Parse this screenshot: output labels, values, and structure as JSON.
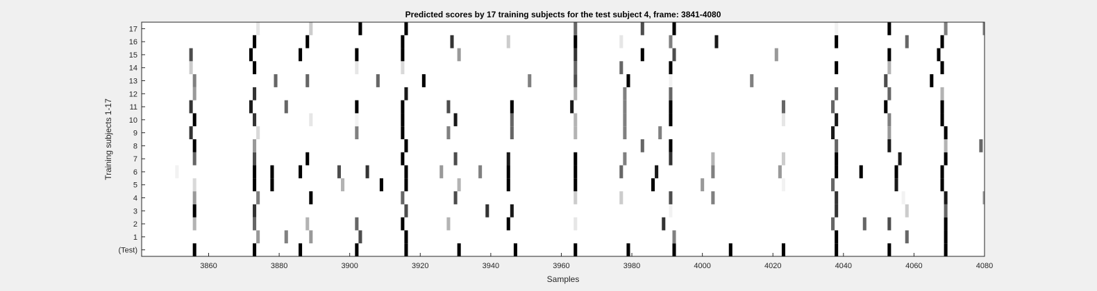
{
  "chart_data": {
    "type": "heatmap",
    "title": "Predicted scores by 17 training subjects for the test subject 4, frame: 3841-4080",
    "xlabel": "Samples",
    "ylabel": "Training subjects 1-17",
    "xlim": [
      3841,
      4080
    ],
    "x_ticks": [
      3860,
      3880,
      3900,
      3920,
      3940,
      3960,
      3980,
      4000,
      4020,
      4040,
      4060,
      4080
    ],
    "rows": [
      "(Test)",
      "1",
      "2",
      "3",
      "4",
      "5",
      "6",
      "7",
      "8",
      "9",
      "10",
      "11",
      "12",
      "13",
      "14",
      "15",
      "16",
      "17"
    ],
    "colormap": "gray (white = 0, black = 1)",
    "grid": false,
    "marks": [
      {
        "row": "(Test)",
        "points": [
          [
            3856,
            1
          ],
          [
            3873,
            1
          ],
          [
            3886,
            1
          ],
          [
            3902,
            1
          ],
          [
            3916,
            1
          ],
          [
            3931,
            1
          ],
          [
            3947,
            1
          ],
          [
            3964,
            1
          ],
          [
            3979,
            1
          ],
          [
            3992,
            1
          ],
          [
            4008,
            1
          ],
          [
            4023,
            1
          ],
          [
            4038,
            1
          ],
          [
            4053,
            1
          ],
          [
            4069,
            1
          ]
        ]
      },
      {
        "row": "1",
        "points": [
          [
            3874,
            0.4
          ],
          [
            3882,
            0.5
          ],
          [
            3889,
            0.4
          ],
          [
            3903,
            0.7
          ],
          [
            3916,
            1
          ],
          [
            3992,
            0.5
          ],
          [
            4038,
            1
          ],
          [
            4058,
            0.6
          ],
          [
            4069,
            1
          ]
        ]
      },
      {
        "row": "2",
        "points": [
          [
            3856,
            0.3
          ],
          [
            3873,
            0.6
          ],
          [
            3888,
            0.3
          ],
          [
            3902,
            0.6
          ],
          [
            3915,
            1
          ],
          [
            3928,
            0.3
          ],
          [
            3945,
            1
          ],
          [
            3964,
            0.1
          ],
          [
            3989,
            0.8
          ],
          [
            4037,
            0.6
          ],
          [
            4046,
            0.6
          ],
          [
            4053,
            0.7
          ],
          [
            4069,
            1
          ]
        ]
      },
      {
        "row": "3",
        "points": [
          [
            3856,
            1
          ],
          [
            3873,
            0.8
          ],
          [
            3916,
            0.7
          ],
          [
            3939,
            0.8
          ],
          [
            3946,
            0.9
          ],
          [
            3991,
            0.05
          ],
          [
            4038,
            0.8
          ],
          [
            4058,
            0.2
          ],
          [
            4069,
            0.6
          ]
        ]
      },
      {
        "row": "4",
        "points": [
          [
            3856,
            0.4
          ],
          [
            3874,
            0.5
          ],
          [
            3889,
            1
          ],
          [
            3915,
            0.6
          ],
          [
            3930,
            0.7
          ],
          [
            3964,
            0.2
          ],
          [
            3977,
            0.2
          ],
          [
            3991,
            0.7
          ],
          [
            4003,
            0.5
          ],
          [
            4038,
            0.8
          ],
          [
            4057,
            0.05
          ],
          [
            4069,
            0.9
          ],
          [
            4080,
            0.4
          ]
        ]
      },
      {
        "row": "5",
        "points": [
          [
            3856,
            0.15
          ],
          [
            3873,
            1
          ],
          [
            3878,
            1
          ],
          [
            3898,
            0.3
          ],
          [
            3909,
            1
          ],
          [
            3916,
            1
          ],
          [
            3931,
            0.3
          ],
          [
            3945,
            1
          ],
          [
            3964,
            1
          ],
          [
            3986,
            1
          ],
          [
            4000,
            0.4
          ],
          [
            4023,
            0.05
          ],
          [
            4037,
            0.6
          ],
          [
            4055,
            0.9
          ],
          [
            4068,
            1
          ]
        ]
      },
      {
        "row": "6",
        "points": [
          [
            3851,
            0.05
          ],
          [
            3873,
            1
          ],
          [
            3878,
            1
          ],
          [
            3886,
            1
          ],
          [
            3897,
            0.7
          ],
          [
            3905,
            0.8
          ],
          [
            3916,
            1
          ],
          [
            3926,
            0.4
          ],
          [
            3937,
            0.5
          ],
          [
            3945,
            1
          ],
          [
            3964,
            1
          ],
          [
            3977,
            0.6
          ],
          [
            3987,
            0.9
          ],
          [
            4003,
            0.5
          ],
          [
            4022,
            0.4
          ],
          [
            4038,
            1
          ],
          [
            4045,
            1
          ],
          [
            4055,
            1
          ],
          [
            4068,
            1
          ]
        ]
      },
      {
        "row": "7",
        "points": [
          [
            3856,
            0.6
          ],
          [
            3873,
            0.7
          ],
          [
            3888,
            1
          ],
          [
            3915,
            1
          ],
          [
            3930,
            0.7
          ],
          [
            3945,
            0.9
          ],
          [
            3964,
            1
          ],
          [
            3978,
            0.5
          ],
          [
            3991,
            0.8
          ],
          [
            4003,
            0.3
          ],
          [
            4023,
            0.2
          ],
          [
            4038,
            1
          ],
          [
            4056,
            0.9
          ],
          [
            4069,
            1
          ]
        ]
      },
      {
        "row": "8",
        "points": [
          [
            3856,
            1
          ],
          [
            3873,
            0.4
          ],
          [
            3916,
            1
          ],
          [
            3983,
            0.6
          ],
          [
            3991,
            1
          ],
          [
            4038,
            0.6
          ],
          [
            4053,
            0.9
          ],
          [
            4069,
            0.3
          ],
          [
            4079,
            0.6
          ]
        ]
      },
      {
        "row": "9",
        "points": [
          [
            3855,
            0.8
          ],
          [
            3874,
            0.15
          ],
          [
            3902,
            0.5
          ],
          [
            3915,
            1
          ],
          [
            3928,
            0.5
          ],
          [
            3946,
            0.6
          ],
          [
            3964,
            0.3
          ],
          [
            3978,
            0.5
          ],
          [
            3988,
            0.5
          ],
          [
            4037,
            0.9
          ],
          [
            4053,
            0.4
          ],
          [
            4069,
            1
          ]
        ]
      },
      {
        "row": "10",
        "points": [
          [
            3856,
            1
          ],
          [
            3873,
            0.8
          ],
          [
            3889,
            0.1
          ],
          [
            3902,
            0.05
          ],
          [
            3915,
            1
          ],
          [
            3930,
            0.9
          ],
          [
            3946,
            0.6
          ],
          [
            3964,
            0.3
          ],
          [
            3978,
            0.5
          ],
          [
            3991,
            1
          ],
          [
            4023,
            0.1
          ],
          [
            4038,
            0.9
          ],
          [
            4053,
            0.5
          ],
          [
            4068,
            1
          ]
        ]
      },
      {
        "row": "11",
        "points": [
          [
            3855,
            0.8
          ],
          [
            3872,
            0.9
          ],
          [
            3882,
            0.6
          ],
          [
            3902,
            1
          ],
          [
            3915,
            1
          ],
          [
            3928,
            0.7
          ],
          [
            3946,
            1
          ],
          [
            3963,
            0.9
          ],
          [
            3978,
            0.5
          ],
          [
            3991,
            1
          ],
          [
            4023,
            0.6
          ],
          [
            4037,
            0.6
          ],
          [
            4052,
            1
          ],
          [
            4068,
            1
          ]
        ]
      },
      {
        "row": "12",
        "points": [
          [
            3856,
            0.4
          ],
          [
            3873,
            0.8
          ],
          [
            3916,
            0.9
          ],
          [
            3964,
            0.3
          ],
          [
            3978,
            0.5
          ],
          [
            3991,
            0.6
          ],
          [
            4038,
            0.6
          ],
          [
            4053,
            0.6
          ],
          [
            4068,
            0.3
          ]
        ]
      },
      {
        "row": "13",
        "points": [
          [
            3856,
            0.5
          ],
          [
            3879,
            0.6
          ],
          [
            3888,
            0.6
          ],
          [
            3908,
            0.6
          ],
          [
            3921,
            1
          ],
          [
            3951,
            0.5
          ],
          [
            3964,
            0.7
          ],
          [
            3979,
            1
          ],
          [
            3991,
            0.05
          ],
          [
            4014,
            0.5
          ],
          [
            4052,
            0.7
          ],
          [
            4065,
            1
          ]
        ]
      },
      {
        "row": "14",
        "points": [
          [
            3855,
            0.2
          ],
          [
            3873,
            1
          ],
          [
            3902,
            0.1
          ],
          [
            3915,
            0.15
          ],
          [
            3964,
            0.6
          ],
          [
            3977,
            0.6
          ],
          [
            3991,
            1
          ],
          [
            4038,
            1
          ],
          [
            4053,
            0.3
          ],
          [
            4068,
            1
          ]
        ]
      },
      {
        "row": "15",
        "points": [
          [
            3855,
            0.7
          ],
          [
            3872,
            1
          ],
          [
            3886,
            1
          ],
          [
            3902,
            1
          ],
          [
            3915,
            1
          ],
          [
            3931,
            0.4
          ],
          [
            3964,
            0.8
          ],
          [
            3983,
            1
          ],
          [
            3992,
            0.7
          ],
          [
            4021,
            0.4
          ],
          [
            4053,
            1
          ],
          [
            4067,
            1
          ]
        ]
      },
      {
        "row": "16",
        "points": [
          [
            3873,
            1
          ],
          [
            3888,
            1
          ],
          [
            3915,
            1
          ],
          [
            3929,
            0.8
          ],
          [
            3945,
            0.2
          ],
          [
            3964,
            1
          ],
          [
            3977,
            0.1
          ],
          [
            3991,
            0.5
          ],
          [
            4004,
            0.9
          ],
          [
            4038,
            1
          ],
          [
            4058,
            0.6
          ],
          [
            4068,
            1
          ]
        ]
      },
      {
        "row": "17",
        "points": [
          [
            3874,
            0.1
          ],
          [
            3889,
            0.2
          ],
          [
            3903,
            1
          ],
          [
            3916,
            1
          ],
          [
            3964,
            0.6
          ],
          [
            3983,
            0.7
          ],
          [
            3992,
            1
          ],
          [
            4038,
            0.05
          ],
          [
            4053,
            1
          ],
          [
            4069,
            0.5
          ],
          [
            4080,
            0.5
          ]
        ]
      }
    ]
  }
}
